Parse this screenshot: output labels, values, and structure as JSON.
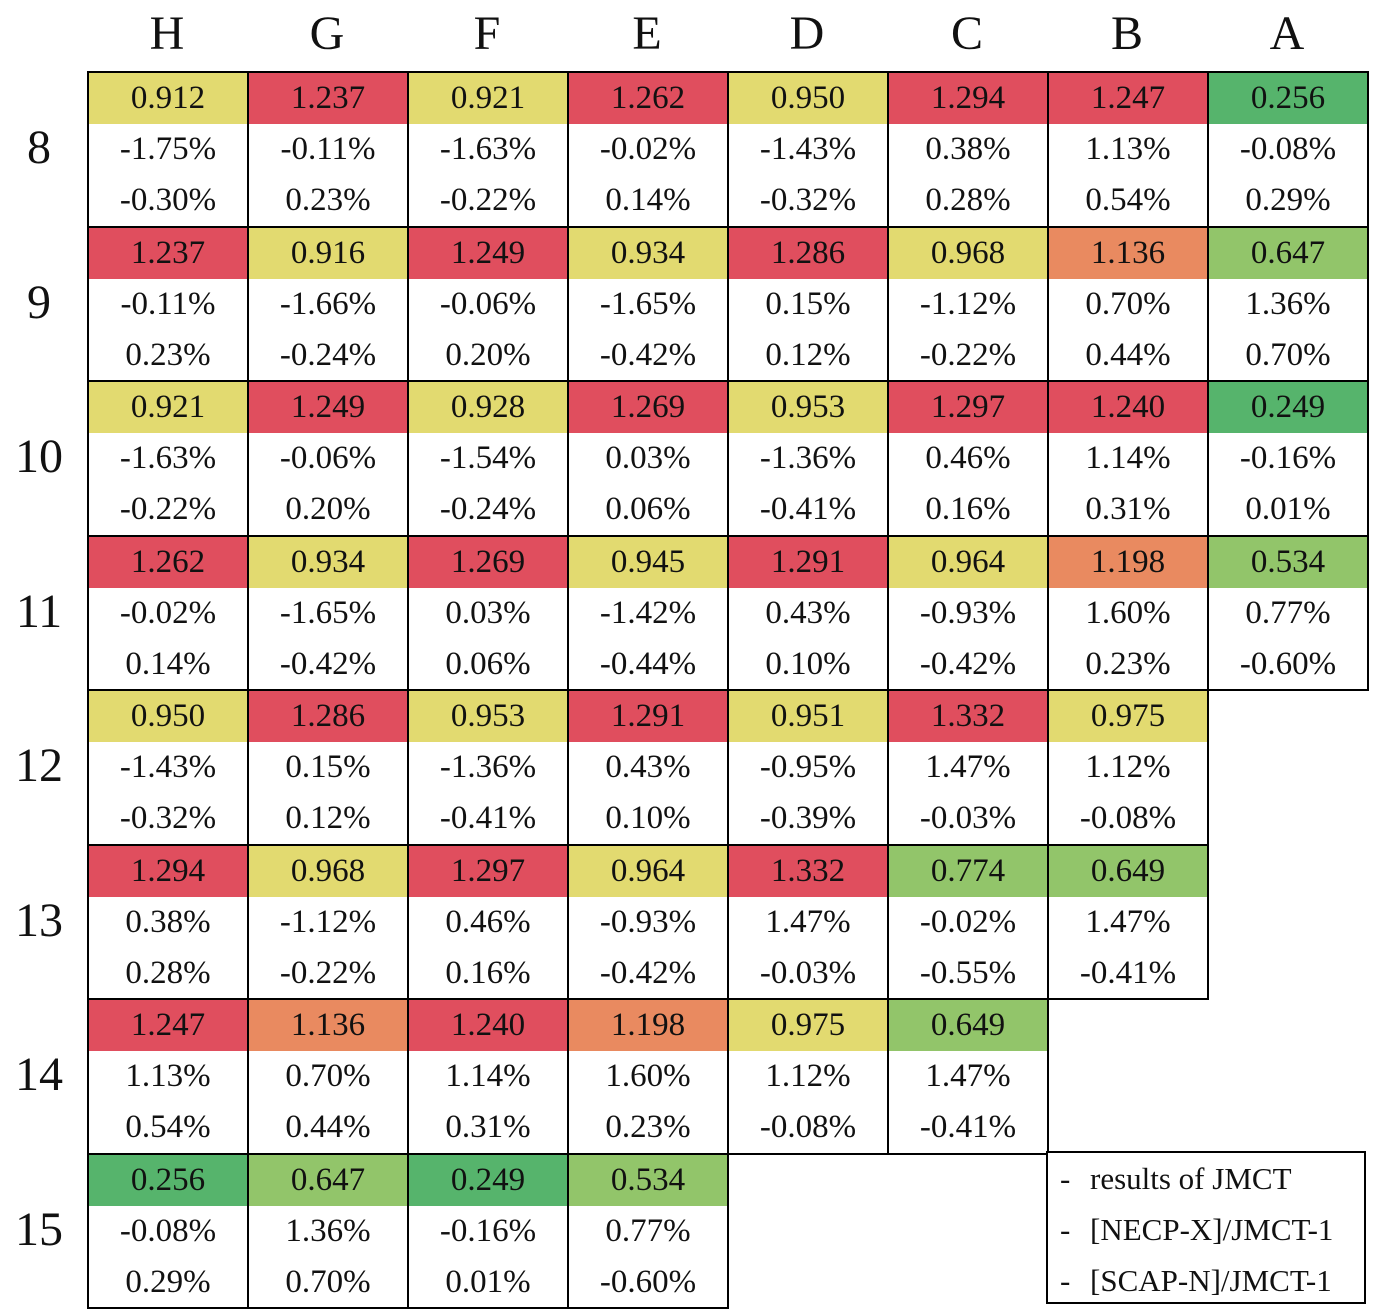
{
  "chart_data": {
    "type": "heatmap",
    "columns": [
      "H",
      "G",
      "F",
      "E",
      "D",
      "C",
      "B",
      "A"
    ],
    "rows": [
      "8",
      "9",
      "10",
      "11",
      "12",
      "13",
      "14",
      "15"
    ],
    "color_scale": {
      "low": "#56b46c",
      "mid_low": "#92c56a",
      "mid": "#e2da70",
      "mid_high": "#e98a60",
      "high": "#e04e5e"
    },
    "cells": [
      [
        [
          "0.912",
          "-1.75%",
          "-0.30%"
        ],
        [
          "1.237",
          "-0.11%",
          "0.23%"
        ],
        [
          "0.921",
          "-1.63%",
          "-0.22%"
        ],
        [
          "1.262",
          "-0.02%",
          "0.14%"
        ],
        [
          "0.950",
          "-1.43%",
          "-0.32%"
        ],
        [
          "1.294",
          "0.38%",
          "0.28%"
        ],
        [
          "1.247",
          "1.13%",
          "0.54%"
        ],
        [
          "0.256",
          "-0.08%",
          "0.29%"
        ]
      ],
      [
        [
          "1.237",
          "-0.11%",
          "0.23%"
        ],
        [
          "0.916",
          "-1.66%",
          "-0.24%"
        ],
        [
          "1.249",
          "-0.06%",
          "0.20%"
        ],
        [
          "0.934",
          "-1.65%",
          "-0.42%"
        ],
        [
          "1.286",
          "0.15%",
          "0.12%"
        ],
        [
          "0.968",
          "-1.12%",
          "-0.22%"
        ],
        [
          "1.136",
          "0.70%",
          "0.44%"
        ],
        [
          "0.647",
          "1.36%",
          "0.70%"
        ]
      ],
      [
        [
          "0.921",
          "-1.63%",
          "-0.22%"
        ],
        [
          "1.249",
          "-0.06%",
          "0.20%"
        ],
        [
          "0.928",
          "-1.54%",
          "-0.24%"
        ],
        [
          "1.269",
          "0.03%",
          "0.06%"
        ],
        [
          "0.953",
          "-1.36%",
          "-0.41%"
        ],
        [
          "1.297",
          "0.46%",
          "0.16%"
        ],
        [
          "1.240",
          "1.14%",
          "0.31%"
        ],
        [
          "0.249",
          "-0.16%",
          "0.01%"
        ]
      ],
      [
        [
          "1.262",
          "-0.02%",
          "0.14%"
        ],
        [
          "0.934",
          "-1.65%",
          "-0.42%"
        ],
        [
          "1.269",
          "0.03%",
          "0.06%"
        ],
        [
          "0.945",
          "-1.42%",
          "-0.44%"
        ],
        [
          "1.291",
          "0.43%",
          "0.10%"
        ],
        [
          "0.964",
          "-0.93%",
          "-0.42%"
        ],
        [
          "1.198",
          "1.60%",
          "0.23%"
        ],
        [
          "0.534",
          "0.77%",
          "-0.60%"
        ]
      ],
      [
        [
          "0.950",
          "-1.43%",
          "-0.32%"
        ],
        [
          "1.286",
          "0.15%",
          "0.12%"
        ],
        [
          "0.953",
          "-1.36%",
          "-0.41%"
        ],
        [
          "1.291",
          "0.43%",
          "0.10%"
        ],
        [
          "0.951",
          "-0.95%",
          "-0.39%"
        ],
        [
          "1.332",
          "1.47%",
          "-0.03%"
        ],
        [
          "0.975",
          "1.12%",
          "-0.08%"
        ]
      ],
      [
        [
          "1.294",
          "0.38%",
          "0.28%"
        ],
        [
          "0.968",
          "-1.12%",
          "-0.22%"
        ],
        [
          "1.297",
          "0.46%",
          "0.16%"
        ],
        [
          "0.964",
          "-0.93%",
          "-0.42%"
        ],
        [
          "1.332",
          "1.47%",
          "-0.03%"
        ],
        [
          "0.774",
          "-0.02%",
          "-0.55%"
        ],
        [
          "0.649",
          "1.47%",
          "-0.41%"
        ]
      ],
      [
        [
          "1.247",
          "1.13%",
          "0.54%"
        ],
        [
          "1.136",
          "0.70%",
          "0.44%"
        ],
        [
          "1.240",
          "1.14%",
          "0.31%"
        ],
        [
          "1.198",
          "1.60%",
          "0.23%"
        ],
        [
          "0.975",
          "1.12%",
          "-0.08%"
        ],
        [
          "0.649",
          "1.47%",
          "-0.41%"
        ]
      ],
      [
        [
          "0.256",
          "-0.08%",
          "0.29%"
        ],
        [
          "0.647",
          "1.36%",
          "0.70%"
        ],
        [
          "0.249",
          "-0.16%",
          "0.01%"
        ],
        [
          "0.534",
          "0.77%",
          "-0.60%"
        ]
      ]
    ],
    "legend": [
      "results of JMCT",
      "[NECP-X]/JMCT-1",
      "[SCAP-N]/JMCT-1"
    ]
  }
}
